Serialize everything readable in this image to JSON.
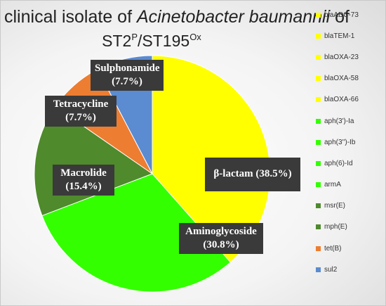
{
  "chart_data": {
    "type": "pie",
    "title_parts": {
      "pre": "clinical isolate of ",
      "species": "Acinetobacter baumannii",
      "post": " of",
      "st_a": "ST2",
      "st_a_sup": "P",
      "sep": "/ST195",
      "st_b_sup": "Ox"
    },
    "slices": [
      {
        "label": "β-lactam (38.5%)",
        "value": 38.5,
        "color": "#ffff00"
      },
      {
        "label": "Aminoglycoside (30.8%)",
        "value": 30.8,
        "color": "#33ff00"
      },
      {
        "label": "Macrolide (15.4%)",
        "value": 15.4,
        "color": "#4f8a2c"
      },
      {
        "label": "Tetracycline (7.7%)",
        "value": 7.7,
        "color": "#ed7d31"
      },
      {
        "label": "Sulphonamide (7.7%)",
        "value": 7.7,
        "color": "#5b8bd0"
      }
    ],
    "label_lines": [
      [
        "β-lactam (38.5%)"
      ],
      [
        "Aminoglycoside",
        "(30.8%)"
      ],
      [
        "Macrolide",
        "(15.4%)"
      ],
      [
        "Tetracycline",
        "(7.7%)"
      ],
      [
        "Sulphonamide",
        "(7.7%)"
      ]
    ],
    "legend_position": "right",
    "legend": [
      {
        "label": "blaADC-73",
        "color": "#ffff00"
      },
      {
        "label": "blaTEM-1",
        "color": "#ffff00"
      },
      {
        "label": "blaOXA-23",
        "color": "#ffff00"
      },
      {
        "label": "blaOXA-58",
        "color": "#ffff00"
      },
      {
        "label": "blaOXA-66",
        "color": "#ffff00"
      },
      {
        "label": "aph(3')-Ia",
        "color": "#33ff00"
      },
      {
        "label": "aph(3'')-Ib",
        "color": "#33ff00"
      },
      {
        "label": "aph(6)-Id",
        "color": "#33ff00"
      },
      {
        "label": "armA",
        "color": "#33ff00"
      },
      {
        "label": "msr(E)",
        "color": "#4f8a2c"
      },
      {
        "label": "mph(E)",
        "color": "#4f8a2c"
      },
      {
        "label": "tet(B)",
        "color": "#ed7d31"
      },
      {
        "label": "sul2",
        "color": "#5b8bd0"
      }
    ]
  }
}
